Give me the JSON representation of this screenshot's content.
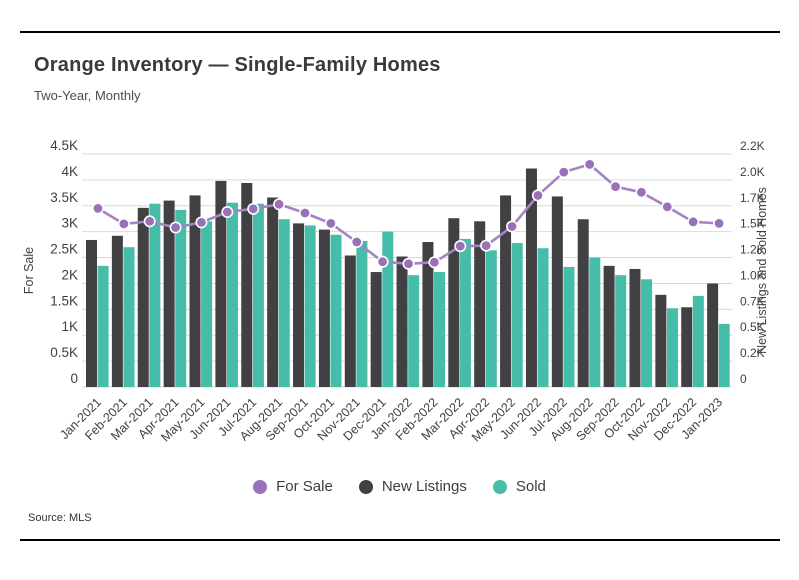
{
  "header": {
    "title": "Orange Inventory — Single-Family Homes",
    "subtitle": "Two-Year, Monthly"
  },
  "footer": {
    "source": "Source: MLS"
  },
  "legend": [
    {
      "label": "For Sale",
      "color": "#9a70b8"
    },
    {
      "label": "New Listings",
      "color": "#414042"
    },
    {
      "label": "Sold",
      "color": "#45bda8"
    }
  ],
  "colors": {
    "bar_new_listings": "#414042",
    "bar_sold": "#45bda8",
    "line_for_sale": "#a285c4",
    "dot_for_sale": "#9a70b8",
    "gridline": "#d9d9d9",
    "axis_text": "#3f3f3f"
  },
  "chart_data": {
    "type": "bar",
    "subtype": "grouped-bars-with-line-overlay",
    "title": "Orange Inventory — Single-Family Homes",
    "subtitle": "Two-Year, Monthly",
    "grid": true,
    "legend_position": "bottom",
    "categories": [
      "Jan-2021",
      "Feb-2021",
      "Mar-2021",
      "Apr-2021",
      "May-2021",
      "Jun-2021",
      "Jul-2021",
      "Aug-2021",
      "Sep-2021",
      "Oct-2021",
      "Nov-2021",
      "Dec-2021",
      "Jan-2022",
      "Feb-2022",
      "Mar-2022",
      "Apr-2022",
      "May-2022",
      "Jun-2022",
      "Jul-2022",
      "Aug-2022",
      "Sep-2022",
      "Oct-2022",
      "Nov-2022",
      "Dec-2022",
      "Jan-2023"
    ],
    "series": [
      {
        "name": "For Sale",
        "type": "line",
        "axis": "left",
        "color": "#a285c4",
        "values": [
          3450,
          3150,
          3200,
          3080,
          3180,
          3380,
          3440,
          3530,
          3360,
          3160,
          2800,
          2420,
          2380,
          2410,
          2720,
          2730,
          3100,
          3700,
          4150,
          4300,
          3870,
          3760,
          3480,
          3190,
          3160
        ]
      },
      {
        "name": "New Listings",
        "type": "bar",
        "axis": "right",
        "color": "#414042",
        "values": [
          1420,
          1460,
          1730,
          1800,
          1850,
          1990,
          1970,
          1830,
          1580,
          1520,
          1270,
          1110,
          1260,
          1400,
          1630,
          1600,
          1850,
          2110,
          1840,
          1620,
          1170,
          1140,
          890,
          770,
          1000
        ]
      },
      {
        "name": "Sold",
        "type": "bar",
        "axis": "right",
        "color": "#45bda8",
        "values": [
          1170,
          1350,
          1770,
          1710,
          1600,
          1780,
          1770,
          1620,
          1560,
          1470,
          1410,
          1500,
          1080,
          1110,
          1430,
          1320,
          1390,
          1340,
          1160,
          1250,
          1080,
          1040,
          760,
          880,
          610
        ]
      }
    ],
    "left_axis": {
      "label": "For Sale",
      "range": [
        0,
        4500
      ],
      "ticks": [
        "0",
        "0.5K",
        "1K",
        "1.5K",
        "2K",
        "2.5K",
        "3K",
        "3.5K",
        "4K",
        "4.5K"
      ]
    },
    "right_axis": {
      "label": "New Listings and Sold Homes",
      "range": [
        0,
        2250
      ],
      "ticks": [
        "0",
        "0.2K",
        "0.5K",
        "0.7K",
        "1.0K",
        "1.2K",
        "1.5K",
        "1.7K",
        "2.0K",
        "2.2K"
      ]
    }
  }
}
